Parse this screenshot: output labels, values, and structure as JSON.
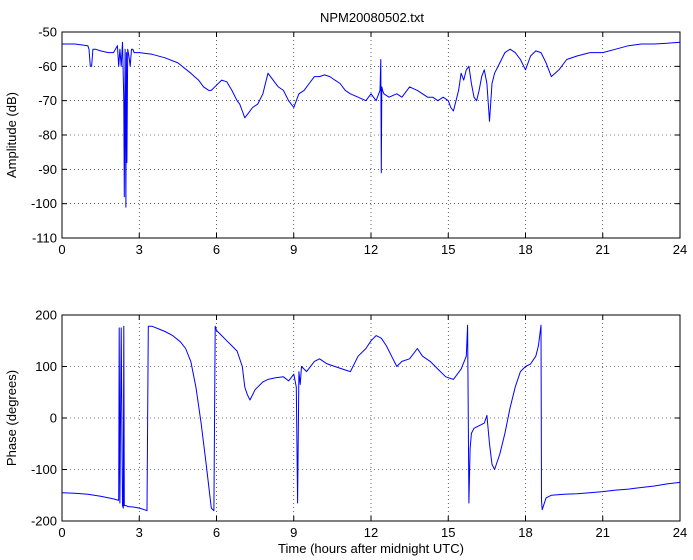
{
  "figure": {
    "title": "NPM20080502.txt",
    "xlabel": "Time (hours after midnight UTC)"
  },
  "chart_data": [
    {
      "type": "line",
      "title": "NPM20080502.txt",
      "xlabel": "",
      "ylabel": "Amplitude (dB)",
      "xlim": [
        0,
        24
      ],
      "ylim": [
        -110,
        -50
      ],
      "xticks": [
        0,
        3,
        6,
        9,
        12,
        15,
        18,
        21,
        24
      ],
      "yticks": [
        -110,
        -100,
        -90,
        -80,
        -70,
        -60,
        -50
      ],
      "grid": true,
      "line_color": "#0000ff",
      "series": [
        {
          "x": [
            0,
            0.5,
            1.0,
            1.05,
            1.1,
            1.15,
            1.2,
            1.25,
            1.3,
            1.5,
            1.8,
            2.0,
            2.15,
            2.2,
            2.25,
            2.3,
            2.35,
            2.4,
            2.42,
            2.45,
            2.48,
            2.5,
            2.52,
            2.55,
            2.6,
            2.65,
            2.7,
            2.75,
            2.8,
            2.85,
            3.0,
            3.5,
            4.0,
            4.5,
            5.0,
            5.3,
            5.5,
            5.7,
            5.8,
            6.0,
            6.2,
            6.4,
            6.6,
            6.8,
            6.9,
            7.0,
            7.1,
            7.2,
            7.4,
            7.6,
            7.8,
            7.9,
            8.0,
            8.2,
            8.4,
            8.6,
            8.8,
            9.0,
            9.1,
            9.2,
            9.4,
            9.6,
            9.8,
            10.0,
            10.2,
            10.4,
            10.6,
            10.8,
            11.0,
            11.2,
            11.5,
            11.8,
            12.0,
            12.2,
            12.35,
            12.38,
            12.4,
            12.42,
            12.45,
            12.5,
            12.7,
            13.0,
            13.2,
            13.5,
            13.8,
            14.0,
            14.2,
            14.4,
            14.6,
            14.8,
            15.0,
            15.1,
            15.2,
            15.3,
            15.4,
            15.5,
            15.6,
            15.7,
            15.8,
            15.9,
            16.0,
            16.1,
            16.2,
            16.3,
            16.4,
            16.5,
            16.6,
            16.7,
            16.8,
            17.0,
            17.2,
            17.4,
            17.6,
            17.8,
            18.0,
            18.2,
            18.4,
            18.6,
            18.8,
            19.0,
            19.3,
            19.6,
            20.0,
            20.5,
            21.0,
            21.5,
            22.0,
            22.5,
            23.0,
            23.5,
            24.0
          ],
          "values": [
            -53.5,
            -53.5,
            -54,
            -55,
            -60,
            -60,
            -55,
            -55,
            -55,
            -55.5,
            -56,
            -56,
            -54,
            -60,
            -55,
            -60,
            -53,
            -70,
            -98,
            -55,
            -101,
            -56,
            -88,
            -55,
            -57,
            -60,
            -55,
            -55,
            -56,
            -56,
            -56,
            -56.5,
            -57.5,
            -59,
            -62,
            -64,
            -66,
            -67,
            -67,
            -65.5,
            -64,
            -64.5,
            -67,
            -70,
            -71,
            -73,
            -75,
            -74,
            -72,
            -71,
            -68,
            -65,
            -62,
            -64,
            -66,
            -67,
            -70,
            -72,
            -70,
            -68,
            -67,
            -65,
            -63,
            -63,
            -62.5,
            -63,
            -64,
            -65,
            -67,
            -68,
            -69,
            -70,
            -68,
            -70,
            -67,
            -58,
            -91,
            -66,
            -67,
            -68,
            -69,
            -68,
            -69,
            -66,
            -67,
            -68,
            -69,
            -69,
            -70,
            -69,
            -70,
            -72,
            -73,
            -70,
            -67,
            -62,
            -64,
            -61,
            -60,
            -65,
            -69,
            -70,
            -67,
            -63,
            -61,
            -65,
            -76,
            -65,
            -62,
            -59,
            -56,
            -55,
            -56,
            -58,
            -61,
            -57,
            -55.5,
            -56,
            -59,
            -63,
            -61,
            -58,
            -57,
            -56,
            -56,
            -55,
            -54,
            -53.5,
            -53.5,
            -53.3,
            -53
          ]
        }
      ]
    },
    {
      "type": "line",
      "title": "",
      "xlabel": "Time (hours after midnight UTC)",
      "ylabel": "Phase (degrees)",
      "xlim": [
        0,
        24
      ],
      "ylim": [
        -200,
        200
      ],
      "xticks": [
        0,
        3,
        6,
        9,
        12,
        15,
        18,
        21,
        24
      ],
      "yticks": [
        -200,
        -100,
        0,
        100,
        200
      ],
      "grid": true,
      "line_color": "#0000ff",
      "series": [
        {
          "x": [
            0,
            0.5,
            1.0,
            1.5,
            2.0,
            2.2,
            2.22,
            2.25,
            2.3,
            2.35,
            2.38,
            2.4,
            2.42,
            2.45,
            2.5,
            2.55,
            2.6,
            2.8,
            3.0,
            3.2,
            3.3,
            3.35,
            3.5,
            3.8,
            4.0,
            4.3,
            4.6,
            4.8,
            5.0,
            5.2,
            5.4,
            5.6,
            5.8,
            5.9,
            5.95,
            6.0,
            6.2,
            6.4,
            6.6,
            6.8,
            7.0,
            7.1,
            7.2,
            7.3,
            7.5,
            7.8,
            8.0,
            8.3,
            8.6,
            8.8,
            9.0,
            9.1,
            9.15,
            9.2,
            9.25,
            9.3,
            9.5,
            9.8,
            10.0,
            10.3,
            10.6,
            10.9,
            11.2,
            11.5,
            11.8,
            12.0,
            12.2,
            12.4,
            12.6,
            12.8,
            13.0,
            13.2,
            13.5,
            13.8,
            14.0,
            14.3,
            14.6,
            14.9,
            15.2,
            15.5,
            15.7,
            15.75,
            15.8,
            15.85,
            15.9,
            16.0,
            16.2,
            16.4,
            16.5,
            16.6,
            16.7,
            16.8,
            17.0,
            17.2,
            17.4,
            17.6,
            17.8,
            18.0,
            18.2,
            18.4,
            18.5,
            18.6,
            18.62,
            18.65,
            18.8,
            19.0,
            19.5,
            20.0,
            20.5,
            21.0,
            21.5,
            22.0,
            22.5,
            23.0,
            23.5,
            24.0
          ],
          "values": [
            -145,
            -146,
            -148,
            -152,
            -157,
            -160,
            175,
            -165,
            175,
            -170,
            -175,
            178,
            -170,
            -170,
            -170,
            -172,
            -172,
            -173,
            -175,
            -178,
            -180,
            178,
            178,
            172,
            168,
            160,
            148,
            135,
            110,
            60,
            -10,
            -90,
            -175,
            -180,
            178,
            170,
            160,
            150,
            140,
            130,
            100,
            60,
            45,
            35,
            55,
            70,
            75,
            78,
            80,
            72,
            85,
            60,
            -165,
            90,
            65,
            100,
            90,
            110,
            115,
            105,
            100,
            95,
            90,
            120,
            135,
            150,
            160,
            155,
            140,
            120,
            100,
            110,
            115,
            135,
            120,
            110,
            95,
            80,
            75,
            95,
            120,
            180,
            -165,
            -60,
            -30,
            -20,
            -15,
            -10,
            5,
            -50,
            -90,
            -100,
            -70,
            -30,
            20,
            60,
            90,
            100,
            105,
            120,
            140,
            180,
            -160,
            -178,
            -155,
            -150,
            -148,
            -147,
            -145,
            -143,
            -140,
            -138,
            -135,
            -132,
            -128,
            -125
          ]
        }
      ]
    }
  ]
}
